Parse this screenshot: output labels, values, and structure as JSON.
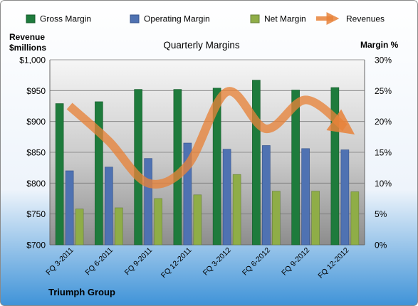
{
  "chart_data": {
    "type": "bar",
    "title": "Quarterly Margins",
    "footer_label": "Triumph Group",
    "left_axis_title": [
      "Revenue",
      "$millions"
    ],
    "right_axis_title": "Margin %",
    "categories": [
      "FQ 3-2011",
      "FQ 6-2011",
      "FQ 9-2011",
      "FQ 12-2011",
      "FQ 3-2012",
      "FQ 6-2012",
      "FQ 9-2012",
      "FQ 12-2012"
    ],
    "left_ticks": [
      "$700",
      "$750",
      "$800",
      "$850",
      "$900",
      "$950",
      "$1,000"
    ],
    "right_ticks": [
      "0%",
      "5%",
      "10%",
      "15%",
      "20%",
      "25%",
      "30%"
    ],
    "ylim_left": [
      700,
      1000
    ],
    "ylim_right": [
      0,
      30
    ],
    "legend_position": "top",
    "grid": true,
    "series": [
      {
        "name": "Gross Margin",
        "axis": "right",
        "color": "#1e7b3c",
        "values": [
          22.9,
          23.2,
          25.2,
          25.2,
          25.4,
          26.7,
          25.1,
          25.5
        ]
      },
      {
        "name": "Operating Margin",
        "axis": "right",
        "color": "#4f72b2",
        "values": [
          12.0,
          12.6,
          14.0,
          16.5,
          15.5,
          16.1,
          15.6,
          15.4
        ]
      },
      {
        "name": "Net Margin",
        "axis": "right",
        "color": "#8fad47",
        "values": [
          5.8,
          6.0,
          7.5,
          8.1,
          11.4,
          8.7,
          8.7,
          8.6
        ]
      }
    ],
    "revenue_series": {
      "name": "Revenues",
      "axis": "left",
      "color": "#e7833a",
      "values": [
        925,
        868,
        800,
        829,
        948,
        888,
        935,
        890
      ]
    }
  }
}
